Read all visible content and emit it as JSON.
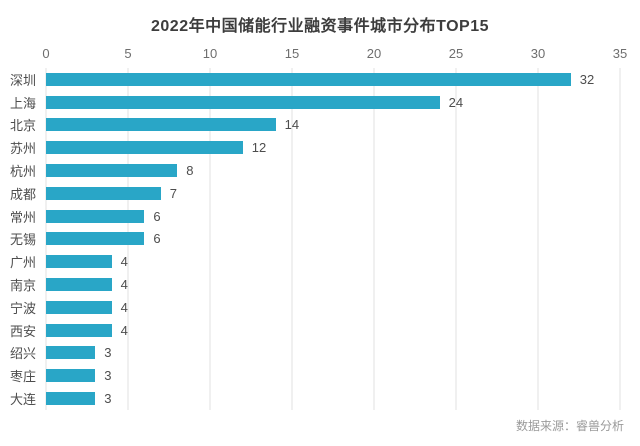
{
  "chart_data": {
    "type": "bar",
    "orientation": "horizontal",
    "title": "2022年中国储能行业融资事件城市分布TOP15",
    "categories": [
      "深圳",
      "上海",
      "北京",
      "苏州",
      "杭州",
      "成都",
      "常州",
      "无锡",
      "广州",
      "南京",
      "宁波",
      "西安",
      "绍兴",
      "枣庄",
      "大连"
    ],
    "values": [
      32,
      24,
      14,
      12,
      8,
      7,
      6,
      6,
      4,
      4,
      4,
      4,
      3,
      3,
      3
    ],
    "x_ticks": [
      0,
      5,
      10,
      15,
      20,
      25,
      30,
      35
    ],
    "xlim": [
      0,
      35
    ],
    "xlabel": "",
    "ylabel": "",
    "grid": true,
    "legend": "none",
    "bar_color": "#29a6c7",
    "grid_color": "#e1e1e1",
    "value_labels_shown": true
  },
  "footer": {
    "source_label": "数据来源：睿兽分析"
  },
  "colors": {
    "title_text": "#3d3d3d",
    "axis_text": "#6e6e6e",
    "label_text": "#4d4d4d",
    "source_text": "#9a9a9a",
    "background": "#ffffff"
  }
}
